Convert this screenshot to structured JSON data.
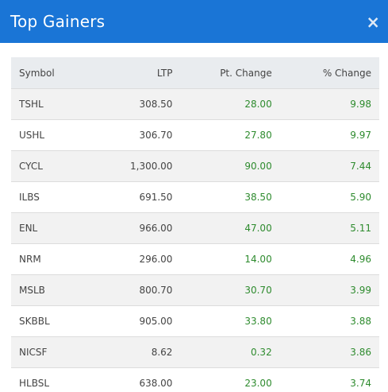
{
  "header": {
    "title": "Top Gainers",
    "close_glyph": "×"
  },
  "table": {
    "columns": [
      "Symbol",
      "LTP",
      "Pt. Change",
      "% Change"
    ],
    "rows": [
      {
        "symbol": "TSHL",
        "ltp": "308.50",
        "pt_change": "28.00",
        "pct_change": "9.98"
      },
      {
        "symbol": "USHL",
        "ltp": "306.70",
        "pt_change": "27.80",
        "pct_change": "9.97"
      },
      {
        "symbol": "CYCL",
        "ltp": "1,300.00",
        "pt_change": "90.00",
        "pct_change": "7.44"
      },
      {
        "symbol": "ILBS",
        "ltp": "691.50",
        "pt_change": "38.50",
        "pct_change": "5.90"
      },
      {
        "symbol": "ENL",
        "ltp": "966.00",
        "pt_change": "47.00",
        "pct_change": "5.11"
      },
      {
        "symbol": "NRM",
        "ltp": "296.00",
        "pt_change": "14.00",
        "pct_change": "4.96"
      },
      {
        "symbol": "MSLB",
        "ltp": "800.70",
        "pt_change": "30.70",
        "pct_change": "3.99"
      },
      {
        "symbol": "SKBBL",
        "ltp": "905.00",
        "pt_change": "33.80",
        "pct_change": "3.88"
      },
      {
        "symbol": "NICSF",
        "ltp": "8.62",
        "pt_change": "0.32",
        "pct_change": "3.86"
      },
      {
        "symbol": "HLBSL",
        "ltp": "638.00",
        "pt_change": "23.00",
        "pct_change": "3.74"
      }
    ]
  },
  "colors": {
    "header_bg": "#1a75d6",
    "positive": "#2e8b2e"
  }
}
